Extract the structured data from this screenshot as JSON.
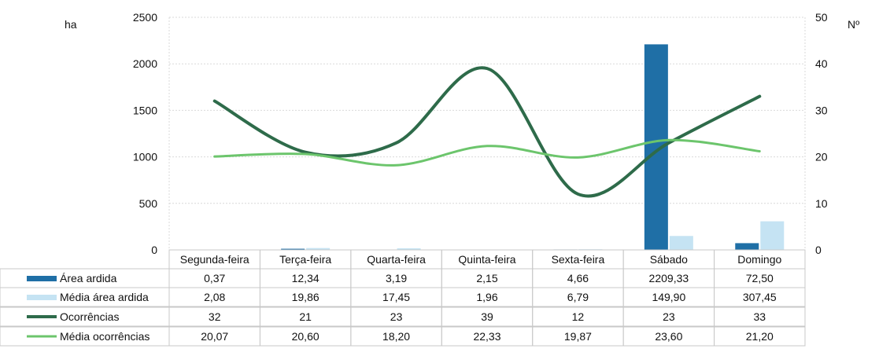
{
  "chart_data": {
    "type": "bar+line",
    "title": "",
    "y_left_label": "ha",
    "y_right_label": "Nº",
    "y_left_ticks": [
      "0",
      "500",
      "1000",
      "1500",
      "2000",
      "2500"
    ],
    "y_right_ticks": [
      "0",
      "10",
      "20",
      "30",
      "40",
      "50"
    ],
    "ylim_left": [
      0,
      2500
    ],
    "ylim_right": [
      0,
      50
    ],
    "categories": [
      "Segunda-feira",
      "Terça-feira",
      "Quarta-feira",
      "Quinta-feira",
      "Sexta-feira",
      "Sábado",
      "Domingo"
    ],
    "series": [
      {
        "name": "Área ardida",
        "kind": "bar",
        "axis": "left",
        "color": "#1f6fa6",
        "values": [
          0.37,
          12.34,
          3.19,
          2.15,
          4.66,
          2209.33,
          72.5
        ],
        "labels": [
          "0,37",
          "12,34",
          "3,19",
          "2,15",
          "4,66",
          "2209,33",
          "72,50"
        ]
      },
      {
        "name": "Média área ardida",
        "kind": "bar",
        "axis": "left",
        "color": "#c5e3f3",
        "values": [
          2.08,
          19.86,
          17.45,
          1.96,
          6.79,
          149.9,
          307.45
        ],
        "labels": [
          "2,08",
          "19,86",
          "17,45",
          "1,96",
          "6,79",
          "149,90",
          "307,45"
        ]
      },
      {
        "name": "Ocorrências",
        "kind": "line",
        "axis": "right",
        "color": "#2e6b4a",
        "values": [
          32,
          21,
          23,
          39,
          12,
          23,
          33
        ],
        "labels": [
          "32",
          "21",
          "23",
          "39",
          "12",
          "23",
          "33"
        ]
      },
      {
        "name": "Média ocorrências",
        "kind": "line",
        "axis": "right",
        "color": "#6cc56c",
        "values": [
          20.07,
          20.6,
          18.2,
          22.33,
          19.87,
          23.6,
          21.2
        ],
        "labels": [
          "20,07",
          "20,60",
          "18,20",
          "22,33",
          "19,87",
          "23,60",
          "21,20"
        ]
      }
    ],
    "grid": true
  }
}
